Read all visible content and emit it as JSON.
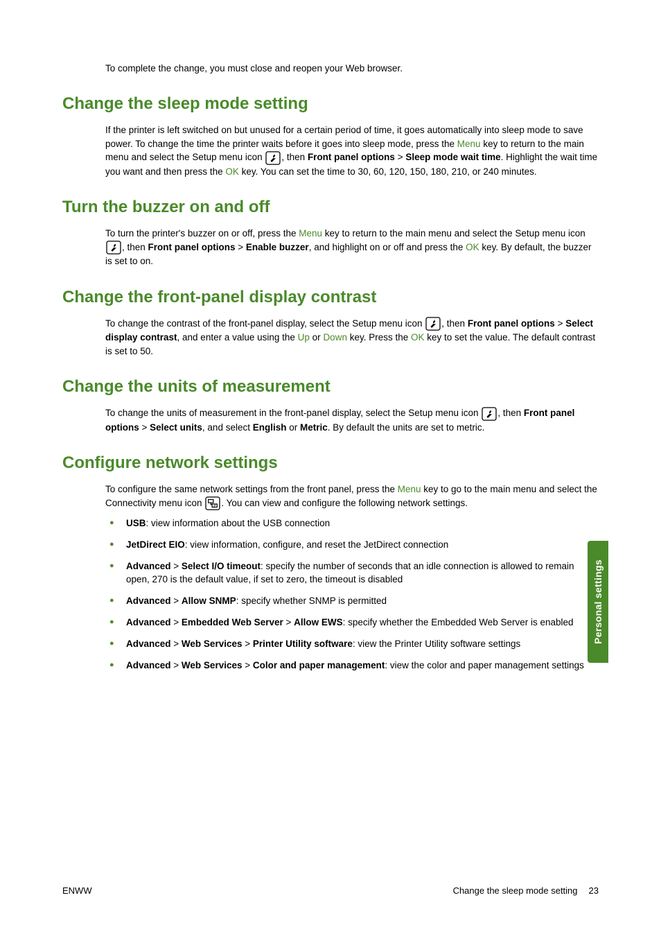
{
  "intro": "To complete the change, you must close and reopen your Web browser.",
  "sections": {
    "sleep": {
      "title": "Change the sleep mode setting",
      "p1a": "If the printer is left switched on but unused for a certain period of time, it goes automatically into sleep mode to save power. To change the time the printer waits before it goes into sleep mode, press the ",
      "menu": "Menu",
      "p1b": " key to return to the main menu and select the Setup menu icon ",
      "p1c": ", then ",
      "fpo": "Front panel options",
      "gt": " > ",
      "smwt": "Sleep mode wait time",
      "p1d": ". Highlight the wait time you want and then press the ",
      "ok": "OK",
      "p1e": " key. You can set the time to 30, 60, 120, 150, 180, 210, or 240 minutes."
    },
    "buzzer": {
      "title": "Turn the buzzer on and off",
      "p1a": "To turn the printer's buzzer on or off, press the ",
      "menu": "Menu",
      "p1b": " key to return to the main menu and select the Setup menu icon ",
      "p1c": ", then ",
      "fpo": "Front panel options",
      "gt": " > ",
      "eb": "Enable buzzer",
      "p1d": ", and highlight on or off and press the ",
      "ok": "OK",
      "p1e": " key. By default, the buzzer is set to on."
    },
    "contrast": {
      "title": "Change the front-panel display contrast",
      "p1a": "To change the contrast of the front-panel display, select the Setup menu icon ",
      "p1b": ", then ",
      "fpo": "Front panel options",
      "gt": " > ",
      "sdc": "Select display contrast",
      "p1c": ", and enter a value using the ",
      "up": "Up",
      "or": " or ",
      "down": "Down",
      "p1d": " key. Press the ",
      "ok": "OK",
      "p1e": " key to set the value. The default contrast is set to 50."
    },
    "units": {
      "title": "Change the units of measurement",
      "p1a": "To change the units of measurement in the front-panel display, select the Setup menu icon ",
      "p1b": ", then ",
      "fpo": "Front panel options",
      "gt": " > ",
      "su": "Select units",
      "p1c": ", and select ",
      "eng": "English",
      "or": " or ",
      "met": "Metric",
      "p1d": ". By default the units are set to metric."
    },
    "network": {
      "title": "Configure network settings",
      "p1a": "To configure the same network settings from the front panel, press the ",
      "menu": "Menu",
      "p1b": " key to go to the main menu and select the Connectivity menu icon ",
      "p1c": ". You can view and configure the following network settings.",
      "items": [
        {
          "b1": "USB",
          "rest": ": view information about the USB connection"
        },
        {
          "b1": "JetDirect EIO",
          "rest": ": view information, configure, and reset the JetDirect connection"
        },
        {
          "b1": "Advanced",
          "gt": " > ",
          "b2": "Select I/O timeout",
          "rest": ": specify the number of seconds that an idle connection is allowed to remain open, 270 is the default value, if set to zero, the timeout is disabled"
        },
        {
          "b1": "Advanced",
          "gt": " > ",
          "b2": "Allow SNMP",
          "rest": ": specify whether SNMP is permitted"
        },
        {
          "b1": "Advanced",
          "gt": " > ",
          "b2": "Embedded Web Server",
          "gt2": " > ",
          "b3": "Allow EWS",
          "rest": ": specify whether the Embedded Web Server is enabled"
        },
        {
          "b1": "Advanced",
          "gt": " > ",
          "b2": "Web Services",
          "gt2": " > ",
          "b3": "Printer Utility software",
          "rest": ": view the Printer Utility software settings"
        },
        {
          "b1": "Advanced",
          "gt": " > ",
          "b2": "Web Services",
          "gt2": " > ",
          "b3": "Color and paper management",
          "rest": ": view the color and paper management settings"
        }
      ]
    }
  },
  "sidebar": "Personal settings",
  "footer": {
    "left": "ENWW",
    "right_label": "Change the sleep mode setting",
    "page": "23"
  },
  "colors": {
    "accent": "#4a8a2a",
    "text": "#000000",
    "bg": "#ffffff"
  }
}
